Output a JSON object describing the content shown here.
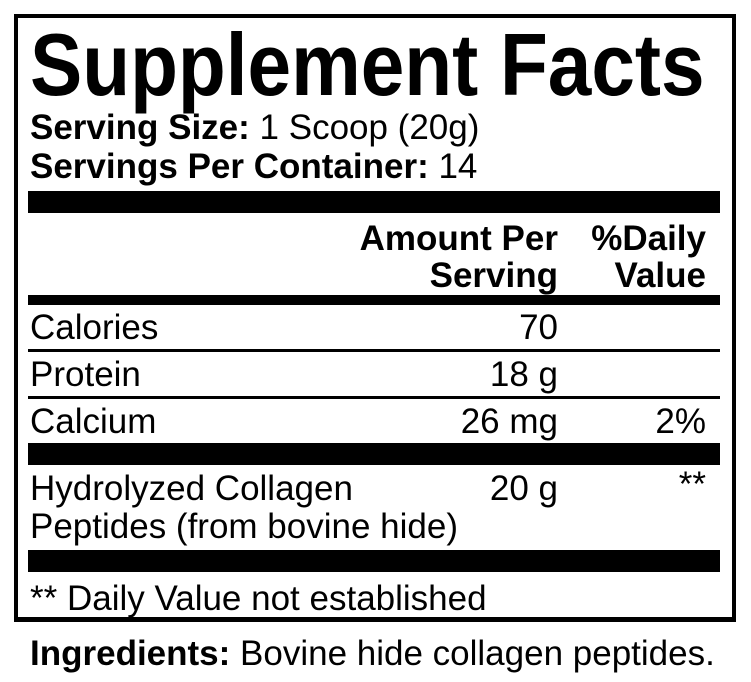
{
  "label": {
    "title": "Supplement Facts",
    "serving_size": {
      "label": "Serving Size:",
      "value": "1 Scoop (20g)"
    },
    "servings_per_container": {
      "label": "Servings Per Container:",
      "value": "14"
    },
    "header": {
      "amount_line1": "Amount Per",
      "amount_line2": "Serving",
      "dv_line1": "%Daily",
      "dv_line2": "Value"
    },
    "rows": [
      {
        "name": "Calories",
        "amount": "70",
        "dv": ""
      },
      {
        "name": "Protein",
        "amount": "18 g",
        "dv": ""
      },
      {
        "name": "Calcium",
        "amount": "26 mg",
        "dv": "2%"
      },
      {
        "name": "Hydrolyzed Collagen Peptides (from bovine hide)",
        "amount": "20 g",
        "dv": "**"
      }
    ],
    "footnote": "** Daily Value not established",
    "ingredients": {
      "label": "Ingredients:",
      "value": "Bovine hide collagen peptides."
    }
  },
  "colors": {
    "text": "#000000",
    "background": "#ffffff",
    "bars": "#000000"
  }
}
